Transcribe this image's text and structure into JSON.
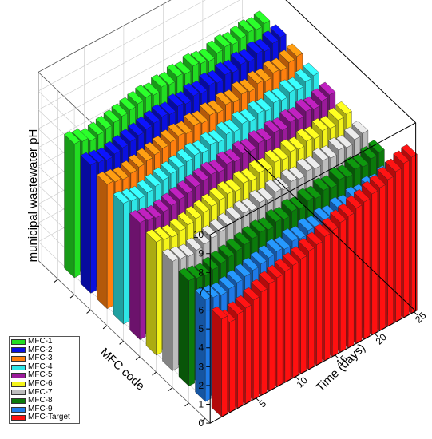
{
  "chart_data": {
    "type": "bar",
    "variant": "3d-bar",
    "title": "",
    "ylabel": "municipal wastewater pH",
    "xlabel": "Time (days)",
    "zlabel": "MFC code",
    "ylim": [
      0,
      10
    ],
    "y_ticks": [
      "0",
      "1",
      "2",
      "3",
      "4",
      "5",
      "6",
      "7",
      "8",
      "9",
      "10"
    ],
    "x_ticks": [
      "5",
      "10",
      "15",
      "20",
      "25"
    ],
    "x": [
      1,
      2,
      3,
      4,
      5,
      6,
      7,
      8,
      9,
      10,
      11,
      12,
      13,
      14,
      15,
      16,
      17,
      18,
      19,
      20,
      21,
      22,
      23,
      24,
      25
    ],
    "grid": true,
    "legend_position": "bottom-left",
    "series": [
      {
        "name": "MFC-1",
        "color": "#22dd22",
        "values": [
          7.1,
          7.0,
          6.8,
          6.9,
          7.0,
          7.1,
          7.2,
          7.3,
          7.4,
          7.5,
          7.4,
          7.6,
          7.5,
          7.7,
          7.6,
          7.8,
          7.7,
          7.6,
          7.8,
          7.9,
          7.8,
          7.9,
          8.0,
          7.9,
          8.0
        ]
      },
      {
        "name": "MFC-2",
        "color": "#0a10e0",
        "values": [
          6.8,
          6.7,
          6.6,
          6.7,
          6.8,
          6.9,
          7.0,
          7.1,
          7.2,
          7.3,
          7.2,
          7.4,
          7.3,
          7.5,
          7.4,
          7.6,
          7.5,
          7.7,
          7.6,
          7.8,
          7.7,
          7.9,
          7.8,
          8.0,
          8.1
        ]
      },
      {
        "name": "MFC-3",
        "color": "#ff7f0e",
        "values": [
          6.6,
          6.5,
          6.4,
          6.5,
          6.6,
          6.7,
          6.8,
          6.9,
          7.0,
          7.1,
          7.0,
          7.2,
          7.1,
          7.3,
          7.2,
          7.4,
          7.3,
          7.5,
          7.4,
          7.6,
          7.5,
          7.7,
          7.6,
          7.8,
          7.9
        ]
      },
      {
        "name": "MFC-4",
        "color": "#2ee6e6",
        "values": [
          6.4,
          6.3,
          6.2,
          6.3,
          6.4,
          6.5,
          6.6,
          6.7,
          6.8,
          6.9,
          6.8,
          7.0,
          6.9,
          7.1,
          7.0,
          7.2,
          7.1,
          7.3,
          7.2,
          7.4,
          7.3,
          7.5,
          7.4,
          7.6,
          7.7
        ]
      },
      {
        "name": "MFC-5",
        "color": "#9a1a9a",
        "values": [
          6.2,
          6.1,
          6.0,
          6.1,
          6.2,
          6.3,
          6.4,
          6.5,
          6.6,
          6.7,
          6.6,
          6.8,
          6.7,
          6.9,
          6.8,
          7.0,
          6.9,
          7.1,
          7.0,
          7.2,
          7.1,
          7.3,
          7.2,
          7.4,
          7.5
        ]
      },
      {
        "name": "MFC-6",
        "color": "#f4f41a",
        "values": [
          6.0,
          5.9,
          5.8,
          5.9,
          6.0,
          6.1,
          6.2,
          6.3,
          6.4,
          6.5,
          6.4,
          6.6,
          6.5,
          6.7,
          6.6,
          6.8,
          6.7,
          6.9,
          6.8,
          7.0,
          6.9,
          7.1,
          7.0,
          7.2,
          7.3
        ]
      },
      {
        "name": "MFC-7",
        "color": "#bdbdbd",
        "values": [
          5.8,
          5.7,
          5.6,
          5.7,
          5.8,
          5.9,
          6.0,
          6.1,
          6.2,
          6.3,
          6.2,
          6.4,
          6.3,
          6.5,
          6.4,
          6.6,
          6.5,
          6.7,
          6.6,
          6.8,
          6.7,
          6.9,
          6.8,
          7.0,
          7.1
        ]
      },
      {
        "name": "MFC-8",
        "color": "#0b7a0b",
        "values": [
          5.6,
          5.5,
          5.4,
          5.5,
          5.6,
          5.7,
          5.8,
          5.9,
          6.0,
          6.1,
          6.0,
          6.2,
          6.1,
          6.3,
          6.2,
          6.4,
          6.3,
          6.5,
          6.4,
          6.6,
          6.5,
          6.7,
          6.6,
          6.8,
          6.9
        ]
      },
      {
        "name": "MFC-9",
        "color": "#1e7ae8",
        "values": [
          5.4,
          5.3,
          5.2,
          5.3,
          5.4,
          5.5,
          5.6,
          5.7,
          5.8,
          5.9,
          5.8,
          6.0,
          5.9,
          6.1,
          6.0,
          6.2,
          6.1,
          6.3,
          6.2,
          6.4,
          6.3,
          6.5,
          6.4,
          6.6,
          6.7
        ]
      },
      {
        "name": "MFC-Target",
        "color": "#ff1010",
        "values": [
          5.2,
          4.8,
          5.0,
          5.1,
          5.3,
          5.5,
          5.7,
          5.8,
          5.9,
          6.0,
          6.1,
          6.3,
          6.4,
          6.6,
          6.7,
          6.9,
          7.0,
          7.2,
          7.3,
          7.5,
          7.6,
          7.8,
          8.0,
          8.2,
          8.3
        ]
      }
    ]
  }
}
